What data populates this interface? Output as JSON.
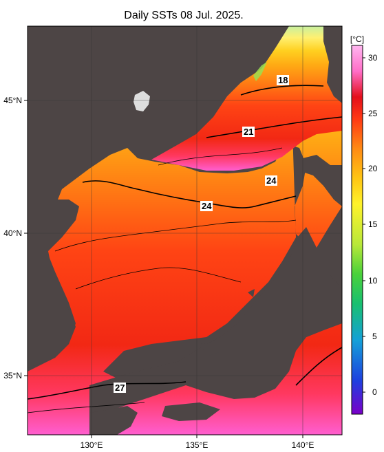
{
  "title": "Daily SSTs 08 Jul. 2025.",
  "map": {
    "lon_ticks": [
      {
        "value": 130,
        "label": "130°E"
      },
      {
        "value": 135,
        "label": "135°E"
      },
      {
        "value": 140,
        "label": "140°E"
      }
    ],
    "lat_ticks": [
      {
        "value": 45,
        "label": "45°N"
      },
      {
        "value": 40,
        "label": "40°N"
      },
      {
        "value": 35,
        "label": "35°N"
      }
    ],
    "contour_labels": [
      "18",
      "21",
      "24",
      "24",
      "27"
    ]
  },
  "colorbar": {
    "unit_label": "[°C]",
    "ticks": [
      "30",
      "25",
      "20",
      "15",
      "10",
      "5",
      "0"
    ],
    "colors": [
      "#7a00c8",
      "#1f3fdf",
      "#14a0d8",
      "#18c070",
      "#4ad13a",
      "#b8e83a",
      "#fff22a",
      "#ffc514",
      "#ff8a14",
      "#ff3a14",
      "#e40f1c",
      "#ff6ec8",
      "#ffb6f0"
    ]
  }
}
